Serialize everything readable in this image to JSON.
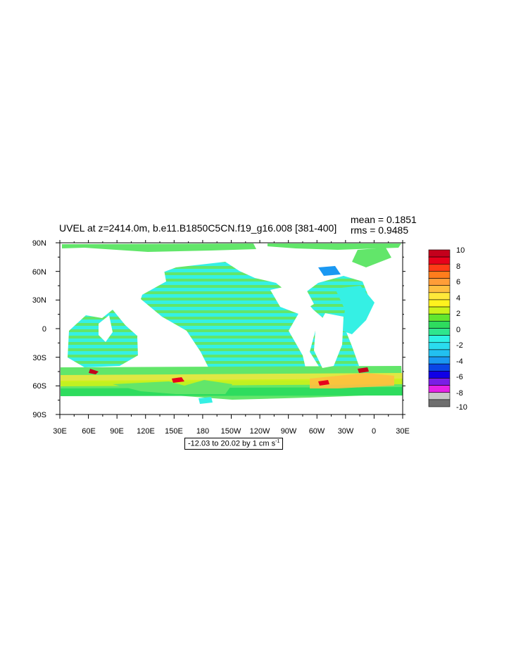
{
  "title": "UVEL at z=2414.0m, b.e11.B1850C5CN.f19_g16.008 [381-400]",
  "stats": {
    "mean": "mean = 0.1851",
    "rms": "rms = 0.9485"
  },
  "lat_labels": [
    "90N",
    "60N",
    "30N",
    "0",
    "30S",
    "60S",
    "90S"
  ],
  "lon_labels": [
    "30E",
    "60E",
    "90E",
    "120E",
    "150E",
    "180",
    "150W",
    "120W",
    "90W",
    "60W",
    "30W",
    "0",
    "30E"
  ],
  "colorbar": {
    "labels": [
      "10",
      "8",
      "6",
      "4",
      "2",
      "0",
      "-2",
      "-4",
      "-6",
      "-8",
      "-10"
    ],
    "colors": [
      "#c4001c",
      "#e8001c",
      "#ff3b16",
      "#ff7d1c",
      "#ff9d38",
      "#ffbf40",
      "#ffe93a",
      "#fff21e",
      "#ccf21a",
      "#62e62e",
      "#2edc5e",
      "#2ee68e",
      "#2ef2e6",
      "#2adcee",
      "#22c0f0",
      "#1a98f2",
      "#0a46e6",
      "#1000e6",
      "#7a1ee6",
      "#e622e6",
      "#c8c8c8",
      "#6e6e6e"
    ]
  },
  "range_text": "-12.03 to 20.02 by 1 cm s",
  "range_unit_exp": "-1"
}
